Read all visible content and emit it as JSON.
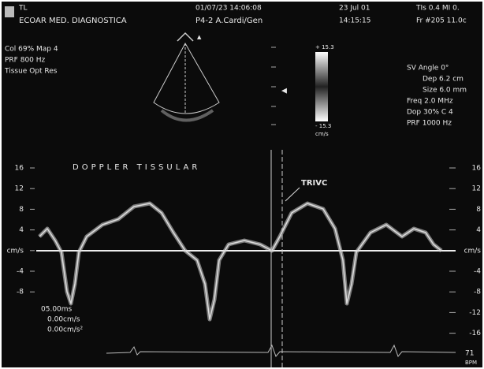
{
  "header": {
    "logo": "TL",
    "clinic": "ECOAR MED. DIAGNOSTICA",
    "exam_id": "01/07/23 14:06:08",
    "probe": "P4-2 A.Cardi/Gen",
    "date": "23 Jul 01",
    "time": "14:15:15",
    "index": "TIs 0.4  MI 0.",
    "frame": "Fr #205 11.0c"
  },
  "left_panel": [
    "Col 69%  Map 4",
    "PRF 800  Hz",
    "Tissue Opt Res"
  ],
  "color_scale": {
    "top": "+ 15.3",
    "bottom": "- 15.3",
    "unit": "cm/s"
  },
  "right_panel": [
    "SV Angle 0°",
    "Dep 6.2  cm",
    "Size 6.0  mm",
    "Freq 2.0  MHz",
    "Dop 30%  C 4",
    "PRF 1000  Hz"
  ],
  "trace": {
    "title": "DOPPLER TISSULAR",
    "annotation": "TRIVC",
    "left_scale": [
      "16",
      "12",
      "8",
      "4",
      "cm/s",
      "-4",
      "-8"
    ],
    "right_scale": [
      "16",
      "12",
      "8",
      "4",
      "cm/s",
      "-4",
      "-8",
      "-12",
      "-16"
    ],
    "measurements": [
      "05.00ms",
      "0.00cm/s",
      "0.00cm/s²"
    ],
    "heart_rate": "71",
    "heart_rate_unit": "BPM"
  }
}
